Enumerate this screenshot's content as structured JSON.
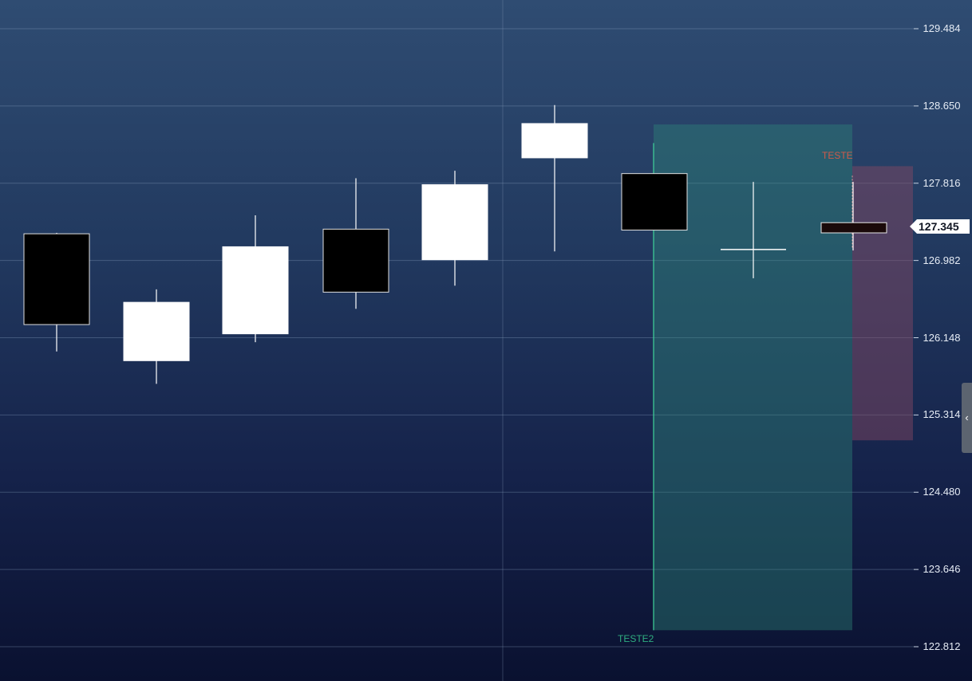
{
  "chart_data": {
    "type": "candlestick",
    "y_ticks": [
      "129.484",
      "128.650",
      "127.816",
      "126.982",
      "126.148",
      "125.314",
      "124.480",
      "123.646",
      "122.812"
    ],
    "ylim": [
      122.6,
      129.8
    ],
    "grid": true,
    "candles": [
      {
        "open": 127.27,
        "high": 127.28,
        "low": 126.0,
        "close": 126.29,
        "color": "black"
      },
      {
        "open": 125.9,
        "high": 126.67,
        "low": 125.65,
        "close": 126.53,
        "color": "white"
      },
      {
        "open": 126.19,
        "high": 127.47,
        "low": 126.1,
        "close": 127.13,
        "color": "white"
      },
      {
        "open": 127.32,
        "high": 127.87,
        "low": 126.46,
        "close": 126.64,
        "color": "black"
      },
      {
        "open": 126.99,
        "high": 127.95,
        "low": 126.71,
        "close": 127.8,
        "color": "white"
      },
      {
        "open": 128.09,
        "high": 128.66,
        "low": 127.08,
        "close": 128.46,
        "color": "white"
      },
      {
        "open": 127.92,
        "high": 127.92,
        "low": 127.31,
        "close": 127.31,
        "color": "black"
      },
      {
        "open": 127.1,
        "high": 127.83,
        "low": 126.79,
        "close": 127.1,
        "color": "doji"
      },
      {
        "open": 127.39,
        "high": 127.83,
        "low": 127.09,
        "close": 127.28,
        "color": "dark-red"
      }
    ],
    "last_price": "127.345",
    "zones": [
      {
        "label": "TESTE2",
        "top": 128.45,
        "bottom": 122.99,
        "color": "#2fae80"
      },
      {
        "label": "TESTE",
        "top": 128.0,
        "bottom": 125.04,
        "color": "#d05a4a"
      }
    ]
  },
  "ui": {
    "collapse_icon": "chevron-left-icon",
    "collapse_glyph": "‹"
  }
}
